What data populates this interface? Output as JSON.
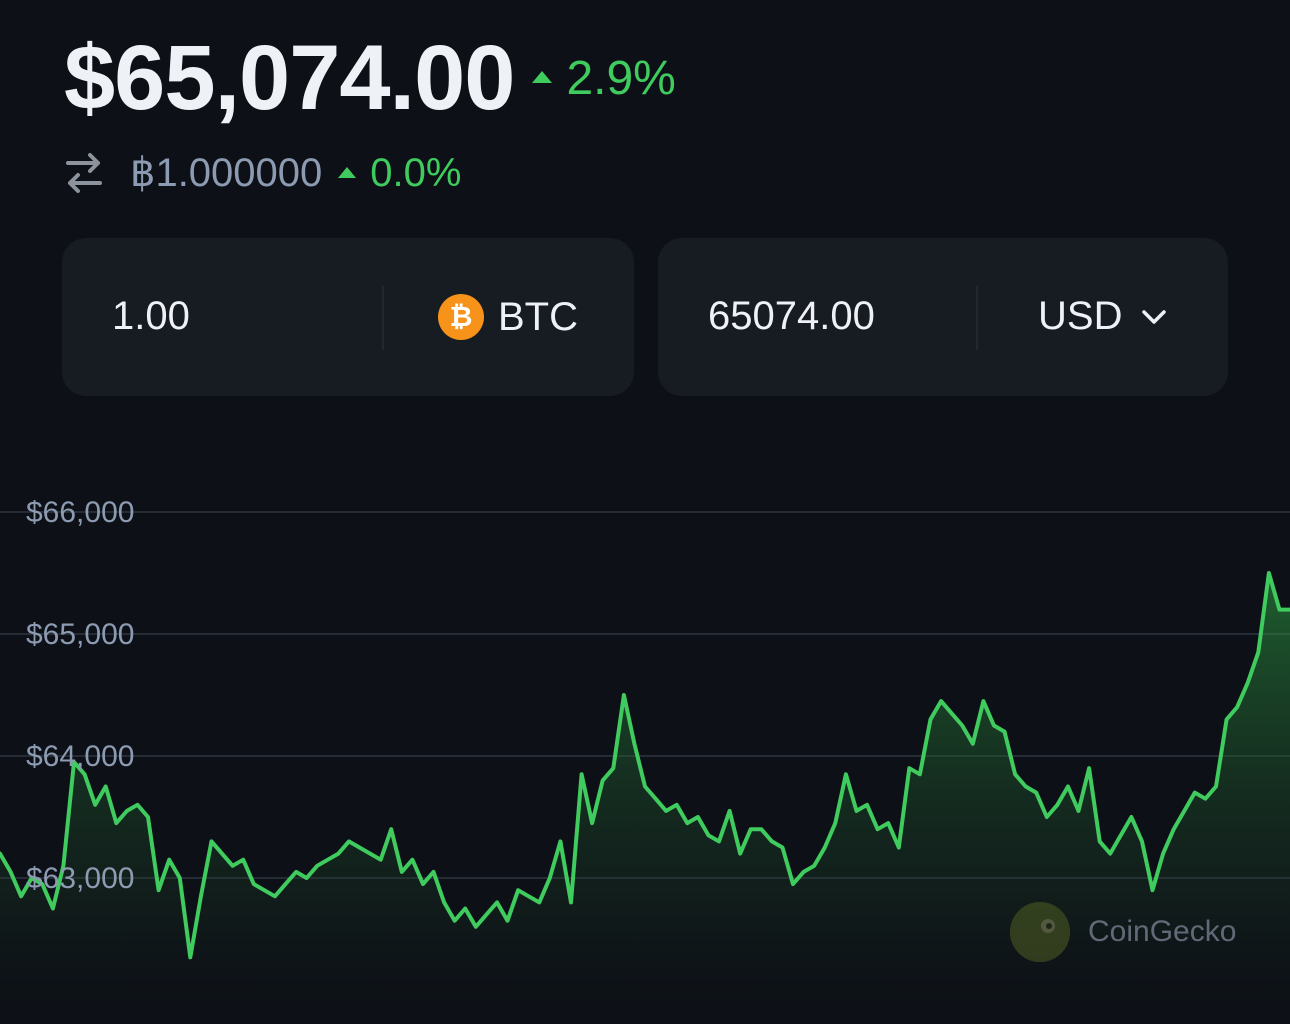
{
  "header": {
    "price": "$65,074.00",
    "change": "2.9%",
    "btc_value": "฿1.000000",
    "btc_change": "0.0%"
  },
  "converter": {
    "from_amount": "1.00",
    "from_currency": "BTC",
    "to_amount": "65074.00",
    "to_currency": "USD"
  },
  "watermark": "CoinGecko",
  "colors": {
    "background": "#0d1117",
    "positive": "#3fcb5e",
    "card": "#171b22",
    "btc": "#f7931a"
  },
  "chart_data": {
    "type": "area",
    "y_tick_labels": [
      "$66,000",
      "$65,000",
      "$64,000",
      "$63,000"
    ],
    "ylim": [
      62200,
      66500
    ],
    "grid": true,
    "values": [
      63200,
      63050,
      62850,
      63000,
      62950,
      62750,
      63100,
      63950,
      63850,
      63600,
      63750,
      63450,
      63550,
      63600,
      63500,
      62900,
      63150,
      63000,
      62350,
      62850,
      63300,
      63200,
      63100,
      63150,
      62950,
      62900,
      62850,
      62950,
      63050,
      63000,
      63100,
      63150,
      63200,
      63300,
      63250,
      63200,
      63150,
      63400,
      63050,
      63150,
      62950,
      63050,
      62800,
      62650,
      62750,
      62600,
      62700,
      62800,
      62650,
      62900,
      62850,
      62800,
      63000,
      63300,
      62800,
      63850,
      63450,
      63800,
      63900,
      64500,
      64100,
      63750,
      63650,
      63550,
      63600,
      63450,
      63500,
      63350,
      63300,
      63550,
      63200,
      63400,
      63400,
      63300,
      63250,
      62950,
      63050,
      63100,
      63250,
      63450,
      63850,
      63550,
      63600,
      63400,
      63450,
      63250,
      63900,
      63850,
      64300,
      64450,
      64350,
      64250,
      64100,
      64450,
      64250,
      64200,
      63850,
      63750,
      63700,
      63500,
      63600,
      63750,
      63550,
      63900,
      63300,
      63200,
      63350,
      63500,
      63300,
      62900,
      63200,
      63400,
      63550,
      63700,
      63650,
      63750,
      64300,
      64400,
      64600,
      64850,
      65500,
      65200,
      65200
    ]
  }
}
